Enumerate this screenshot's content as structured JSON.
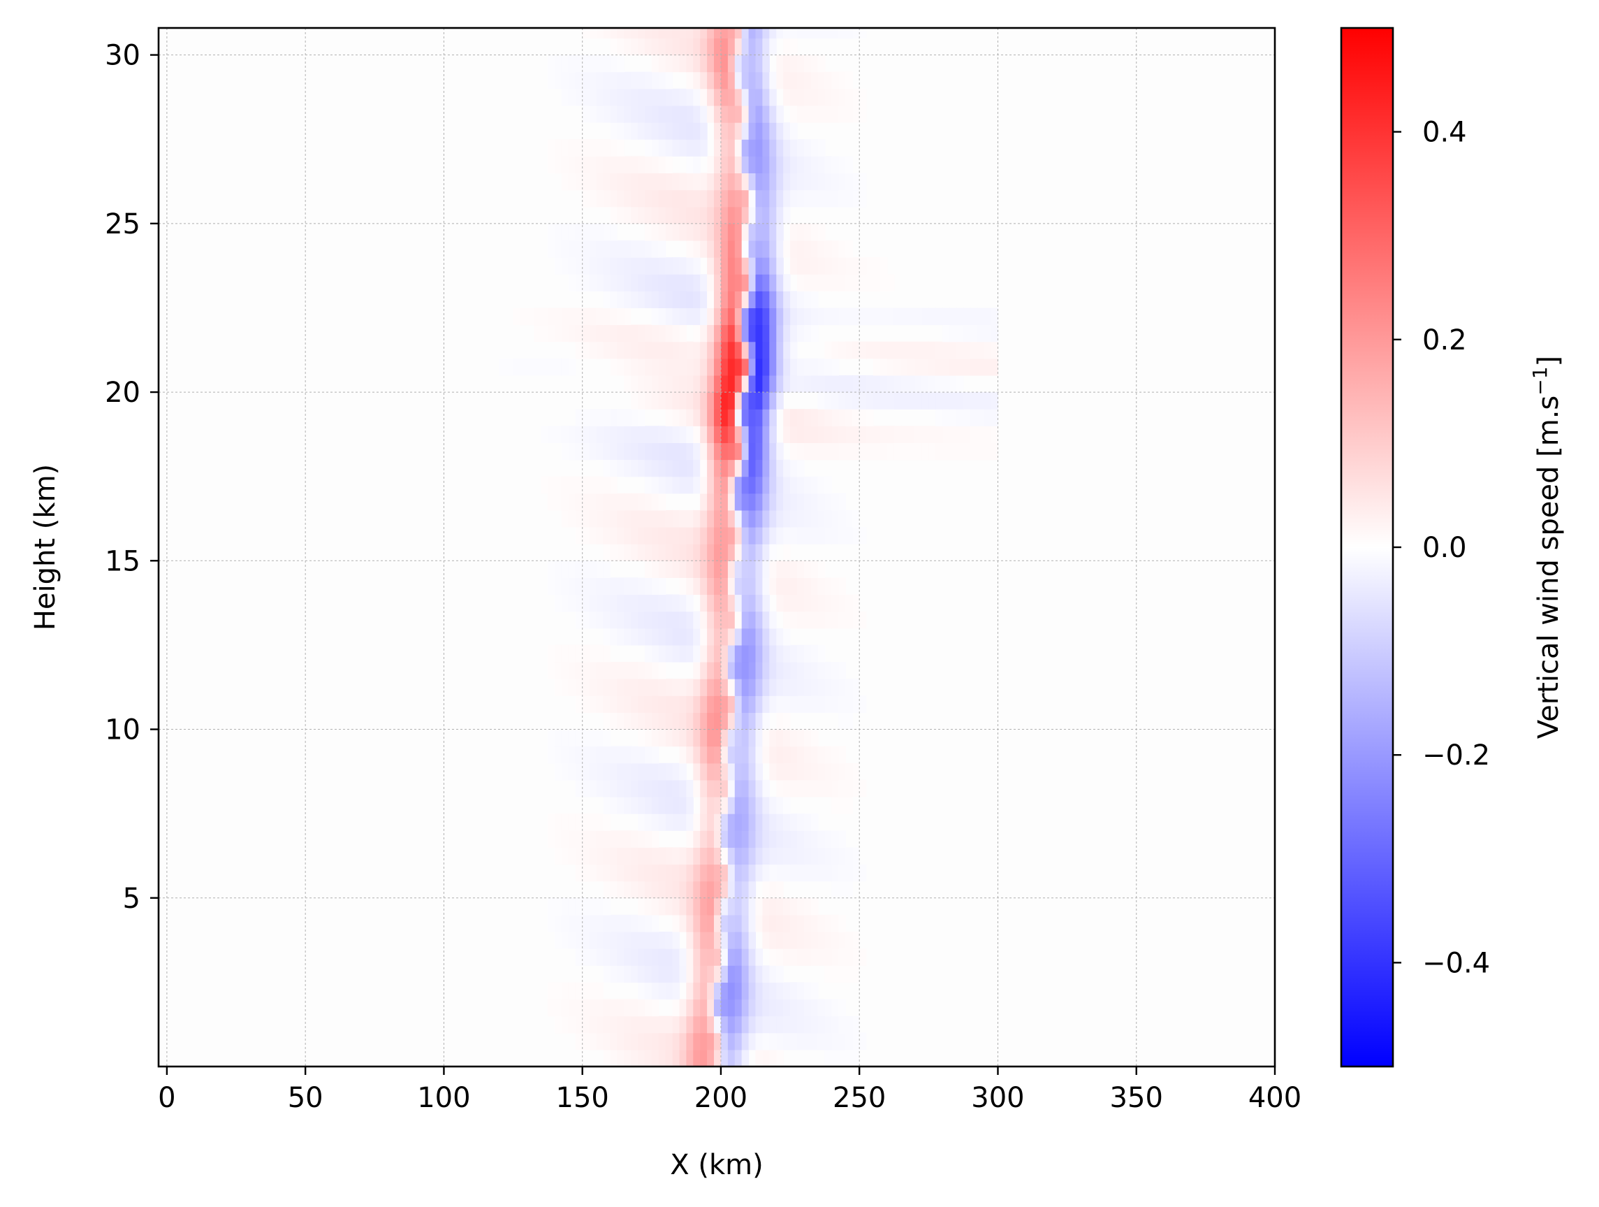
{
  "chart_data": {
    "type": "heatmap",
    "title": "",
    "xlabel": "X (km)",
    "ylabel": "Height (km)",
    "xlim": [
      -3,
      400
    ],
    "ylim": [
      0,
      30.8
    ],
    "x_ticks": [
      0,
      50,
      100,
      150,
      200,
      250,
      300,
      350,
      400
    ],
    "x_tick_labels": [
      "0",
      "50",
      "100",
      "150",
      "200",
      "250",
      "300",
      "350",
      "400"
    ],
    "y_ticks": [
      5,
      10,
      15,
      20,
      25,
      30
    ],
    "y_tick_labels": [
      "5",
      "10",
      "15",
      "20",
      "25",
      "30"
    ],
    "grid": true,
    "colormap": "bwr",
    "colorbar": {
      "label": "Vertical wind speed [m.s",
      "label_superscript": "−1",
      "label_close": "]",
      "vmin": -0.5,
      "vmax": 0.5,
      "ticks": [
        -0.4,
        -0.2,
        0.0,
        0.2,
        0.4
      ],
      "tick_labels": [
        "−0.4",
        "−0.2",
        "0.0",
        "0.2",
        "0.4"
      ],
      "colors": {
        "low": "#0000ff",
        "mid": "#ffffff",
        "high": "#ff0000"
      }
    },
    "field": {
      "description_of_structure": "dipole wave field along a slanted axis",
      "axis_points_height_km": [
        0.5,
        5,
        10,
        13,
        15,
        17,
        19,
        21,
        23,
        25,
        28,
        30
      ],
      "axis_points_x_km": [
        198,
        201,
        203,
        205,
        205,
        206,
        207,
        209,
        209,
        210,
        208,
        206
      ],
      "peak_negative_m_s": -0.5,
      "peak_positive_m_s": 0.4,
      "peak_negative_location": {
        "x_km": 205,
        "height_km": 22
      },
      "peak_positive_location": {
        "x_km": 208,
        "height_km": 18.5
      }
    }
  }
}
